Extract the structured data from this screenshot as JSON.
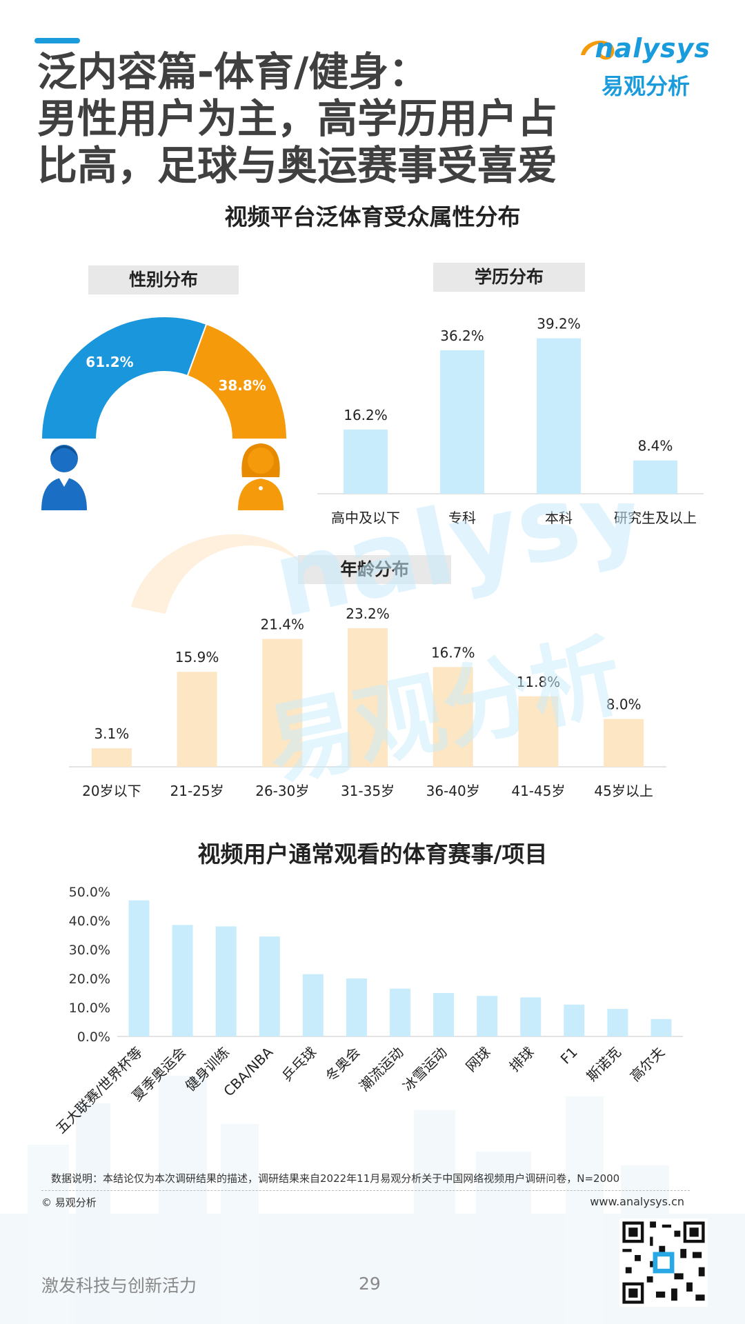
{
  "header": {
    "title_lines": [
      "泛内容篇-体育/健身：",
      "男性用户为主，高学历用户占",
      "比高，足球与奥运赛事受喜爱"
    ],
    "logo_en": "nalysys",
    "logo_cn": "易观分析"
  },
  "section1": {
    "title": "视频平台泛体育受众属性分布"
  },
  "gender": {
    "tag": "性别分布"
  },
  "education": {
    "tag": "学历分布"
  },
  "age": {
    "tag": "年龄分布"
  },
  "section2": {
    "title": "视频用户通常观看的体育赛事/项目"
  },
  "colors": {
    "blue": "#1a96dc",
    "orange": "#f59a0b",
    "bar_light_blue": "#c9ecfc",
    "bar_light_orange": "#fde6c4"
  },
  "chart_data": [
    {
      "type": "pie",
      "subtype": "semi-donut",
      "title": "性别分布",
      "categories": [
        "男",
        "女"
      ],
      "values": [
        61.2,
        38.8
      ],
      "labels": [
        "61.2%",
        "38.8%"
      ]
    },
    {
      "type": "bar",
      "title": "学历分布",
      "categories": [
        "高中及以下",
        "专科",
        "本科",
        "研究生及以上"
      ],
      "values": [
        16.2,
        36.2,
        39.2,
        8.4
      ],
      "labels": [
        "16.2%",
        "36.2%",
        "39.2%",
        "8.4%"
      ]
    },
    {
      "type": "bar",
      "title": "年龄分布",
      "categories": [
        "20岁以下",
        "21-25岁",
        "26-30岁",
        "31-35岁",
        "36-40岁",
        "41-45岁",
        "45岁以上"
      ],
      "values": [
        3.1,
        15.9,
        21.4,
        23.2,
        16.7,
        11.8,
        8.0
      ],
      "labels": [
        "3.1%",
        "15.9%",
        "21.4%",
        "23.2%",
        "16.7%",
        "11.8%",
        "8.0%"
      ]
    },
    {
      "type": "bar",
      "title": "视频用户通常观看的体育赛事/项目",
      "categories": [
        "五大联赛/世界杯等",
        "夏季奥运会",
        "健身训练",
        "CBA/NBA",
        "乒乓球",
        "冬奥会",
        "潮流运动",
        "冰雪运动",
        "网球",
        "排球",
        "F1",
        "斯诺克",
        "高尔夫"
      ],
      "values": [
        47.0,
        38.5,
        38.0,
        34.5,
        21.5,
        20.0,
        16.5,
        15.0,
        14.0,
        13.5,
        11.0,
        9.5,
        6.0
      ],
      "ylim": [
        0,
        50
      ],
      "yticks": [
        "50.0%",
        "40.0%",
        "30.0%",
        "20.0%",
        "10.0%",
        "0.0%"
      ],
      "grid": false
    }
  ],
  "footer": {
    "note": "数据说明：本结论仅为本次调研结果的描述，调研结果来自2022年11月易观分析关于中国网络视频用户调研问卷，N=2000",
    "copyright": "© 易观分析",
    "website": "www.analysys.cn",
    "slogan": "激发科技与创新活力",
    "page": "29"
  }
}
